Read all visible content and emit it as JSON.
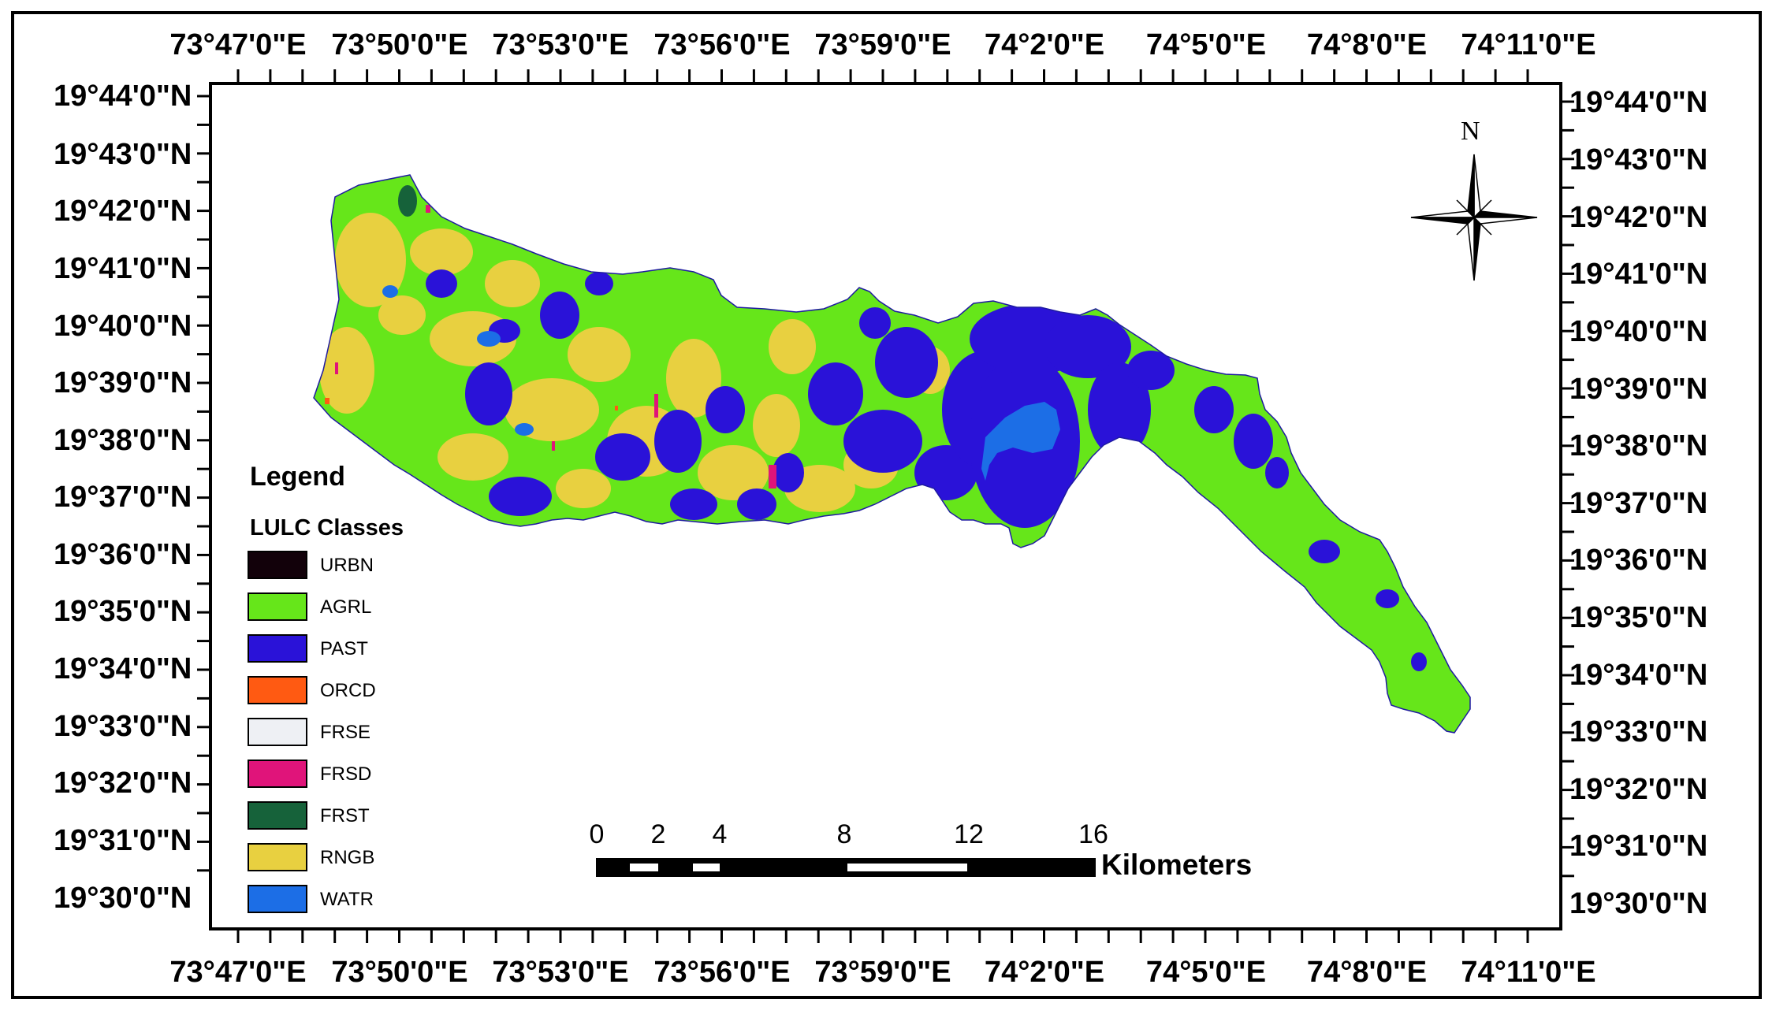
{
  "map": {
    "graticule": {
      "longitude_labels": [
        "73°47'0\"E",
        "73°50'0\"E",
        "73°53'0\"E",
        "73°56'0\"E",
        "73°59'0\"E",
        "74°2'0\"E",
        "74°5'0\"E",
        "74°8'0\"E",
        "74°11'0\"E"
      ],
      "latitude_labels_left": [
        "19°44'0\"N",
        "19°43'0\"N",
        "19°42'0\"N",
        "19°41'0\"N",
        "19°40'0\"N",
        "19°39'0\"N",
        "19°38'0\"N",
        "19°37'0\"N",
        "19°36'0\"N",
        "19°35'0\"N",
        "19°34'0\"N",
        "19°33'0\"N",
        "19°32'0\"N",
        "19°31'0\"N",
        "19°30'0\"N"
      ],
      "latitude_labels_right": [
        "19°44'0\"N",
        "19°43'0\"N",
        "19°42'0\"N",
        "19°41'0\"N",
        "19°40'0\"N",
        "19°39'0\"N",
        "19°38'0\"N",
        "19°37'0\"N",
        "19°36'0\"N",
        "19°35'0\"N",
        "19°34'0\"N",
        "19°33'0\"N",
        "19°32'0\"N",
        "19°31'0\"N",
        "19°30'0\"N"
      ]
    },
    "legend": {
      "title": "Legend",
      "subtitle": "LULC Classes",
      "classes": [
        {
          "code": "URBN",
          "color": "#12010a"
        },
        {
          "code": "AGRL",
          "color": "#66e61a"
        },
        {
          "code": "PAST",
          "color": "#2a12d8"
        },
        {
          "code": "ORCD",
          "color": "#ff5a12"
        },
        {
          "code": "FRSE",
          "color": "#eef0f4"
        },
        {
          "code": "FRSD",
          "color": "#e0147a"
        },
        {
          "code": "FRST",
          "color": "#16623a"
        },
        {
          "code": "RNGB",
          "color": "#e8d040"
        },
        {
          "code": "WATR",
          "color": "#1c6ee6"
        }
      ]
    },
    "scale_bar": {
      "tick_values": [
        "0",
        "2",
        "4",
        "8",
        "12",
        "16"
      ],
      "unit": "Kilometers"
    },
    "north_arrow": {
      "label": "N",
      "icon": "compass-rose-icon"
    }
  }
}
